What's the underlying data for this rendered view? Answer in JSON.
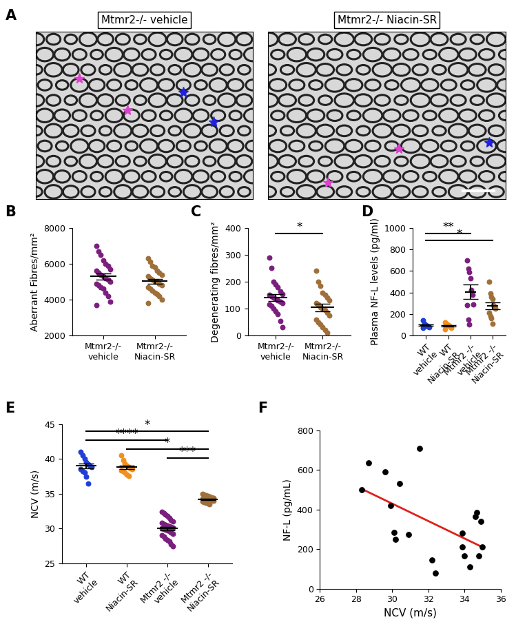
{
  "image_panel": {
    "label": "A",
    "titles": [
      "Mtmr2-/- vehicle",
      "Mtmr2-/- Niacin-SR"
    ]
  },
  "chart_data": [
    {
      "type": "strip",
      "label": "B",
      "ylabel": "Aberrant Fibres/mm²",
      "categories": [
        "Mtmr2-/-\nvehicle",
        "Mtmr2-/-\nNiacin-SR"
      ],
      "colors": [
        "#7b1f7e",
        "#a0703a"
      ],
      "values": [
        [
          7000,
          6700,
          6500,
          6200,
          6000,
          5900,
          5700,
          5600,
          5500,
          5400,
          5300,
          5200,
          5100,
          5000,
          4900,
          4800,
          4700,
          4600,
          4400,
          4200,
          3900,
          3700
        ],
        [
          6300,
          6100,
          5900,
          5800,
          5600,
          5500,
          5400,
          5300,
          5200,
          5100,
          5000,
          5000,
          4900,
          4800,
          4700,
          4600,
          4500,
          4400,
          4300,
          4200,
          4000,
          3800
        ]
      ],
      "means": [
        5290,
        5020
      ],
      "sem": [
        170,
        150
      ],
      "ylim": [
        2000,
        8000
      ],
      "yticks": [
        2000,
        4000,
        6000,
        8000
      ],
      "comparisons": []
    },
    {
      "type": "strip",
      "label": "C",
      "ylabel": "Degenerating fibres/mm²",
      "categories": [
        "Mtmr2-/-\nvehicle",
        "Mtmr2-/-\nNiacin-SR"
      ],
      "colors": [
        "#7b1f7e",
        "#a0703a"
      ],
      "values": [
        [
          290,
          250,
          200,
          190,
          180,
          165,
          155,
          150,
          145,
          140,
          135,
          130,
          125,
          120,
          115,
          110,
          100,
          90,
          80,
          55,
          30
        ],
        [
          240,
          200,
          185,
          160,
          150,
          140,
          130,
          120,
          115,
          105,
          100,
          95,
          85,
          75,
          60,
          50,
          40,
          30,
          20,
          10
        ]
      ],
      "means": [
        141,
        105
      ],
      "sem": [
        12,
        14
      ],
      "ylim": [
        0,
        400
      ],
      "yticks": [
        0,
        100,
        200,
        300,
        400
      ],
      "comparisons": [
        {
          "groups": [
            0,
            1
          ],
          "label": "*"
        }
      ]
    },
    {
      "type": "strip",
      "label": "D",
      "ylabel": "Plasma NF-L levels (pg/ml)",
      "categories": [
        "WT\nvehicle",
        "WT\nNiacin-SR",
        "Mtmr2 -/-\nvehicle",
        "Mtmr2 -/-\nNiacin-SR"
      ],
      "colors": [
        "#1f3fd6",
        "#f0901e",
        "#7b1f7e",
        "#a0703a"
      ],
      "values": [
        [
          140,
          110,
          100,
          95,
          90,
          85,
          80,
          70
        ],
        [
          120,
          110,
          100,
          95,
          90,
          85,
          70,
          60
        ],
        [
          700,
          620,
          590,
          530,
          420,
          380,
          290,
          280,
          150,
          100
        ],
        [
          500,
          390,
          360,
          340,
          280,
          270,
          250,
          210,
          180,
          160,
          110
        ]
      ],
      "means": [
        96,
        91,
        406,
        277
      ],
      "sem": [
        8,
        7,
        65,
        33
      ],
      "ylim": [
        0,
        1000
      ],
      "yticks": [
        0,
        200,
        400,
        600,
        800,
        1000
      ],
      "comparisons": [
        {
          "groups": [
            0,
            2
          ],
          "label": "**"
        },
        {
          "groups": [
            0,
            3
          ],
          "label": "*"
        }
      ]
    },
    {
      "type": "strip",
      "label": "E",
      "ylabel": "NCV (m/s)",
      "categories": [
        "WT\nvehicle",
        "WT\nNiacin-SR",
        "Mtmr2 -/-\nvehicle",
        "Mtmr2 -/-\nNiacin-SR"
      ],
      "colors": [
        "#1f3fd6",
        "#f0901e",
        "#7b1f7e",
        "#a0703a"
      ],
      "values": [
        [
          41,
          40.5,
          40,
          39.5,
          39.2,
          39,
          38.8,
          38.5,
          38.2,
          38,
          37.5,
          36.5
        ],
        [
          40.5,
          39.8,
          39.3,
          39,
          38.8,
          38.6,
          38.5,
          38.3,
          38.2,
          38,
          37.8,
          37.6
        ],
        [
          32.4,
          32.2,
          32,
          31.8,
          31.5,
          31.2,
          31,
          30.8,
          30.6,
          30.5,
          30.4,
          30.3,
          30.2,
          30.1,
          30,
          29.9,
          29.8,
          29.7,
          29.6,
          29.4,
          29.2,
          29,
          28.8,
          28.6,
          28.4,
          28.2,
          27.8,
          27.5
        ],
        [
          35,
          34.9,
          34.8,
          34.7,
          34.6,
          34.5,
          34.4,
          34.3,
          34.3,
          34.2,
          34.2,
          34.1,
          34,
          34,
          33.9,
          33.8,
          33.7,
          33.6,
          33.5
        ]
      ],
      "means": [
        39.0,
        38.8,
        30.0,
        34.2
      ],
      "sem": [
        0.35,
        0.27,
        0.22,
        0.1
      ],
      "ylim": [
        25,
        45
      ],
      "yticks": [
        25,
        30,
        35,
        40,
        45
      ],
      "comparisons": [
        {
          "groups": [
            0,
            3
          ],
          "label": "*"
        },
        {
          "groups": [
            0,
            2
          ],
          "label": "****"
        },
        {
          "groups": [
            1,
            3
          ],
          "label": "*"
        },
        {
          "groups": [
            2,
            3
          ],
          "label": "***"
        }
      ]
    },
    {
      "type": "scatter",
      "label": "F",
      "xlabel": "NCV (m/s)",
      "ylabel": "NF-L (pg/mL)",
      "x": [
        28.3,
        28.7,
        29.6,
        29.9,
        30.1,
        30.2,
        30.4,
        30.9,
        31.5,
        32.2,
        32.4,
        33.9,
        33.9,
        34.0,
        34.3,
        34.6,
        34.7,
        34.8,
        34.9,
        35.0
      ],
      "values": [
        500,
        635,
        590,
        420,
        285,
        250,
        530,
        275,
        710,
        145,
        80,
        210,
        280,
        165,
        110,
        365,
        385,
        165,
        340,
        210
      ],
      "color": "#000000",
      "trend_line": {
        "x": [
          28.3,
          35.0
        ],
        "y": [
          505,
          210
        ],
        "color": "#e0201b"
      },
      "xlim": [
        26,
        36
      ],
      "xticks": [
        26,
        28,
        30,
        32,
        34,
        36
      ],
      "ylim": [
        0,
        800
      ],
      "yticks": [
        0,
        200,
        400,
        600,
        800
      ]
    }
  ]
}
